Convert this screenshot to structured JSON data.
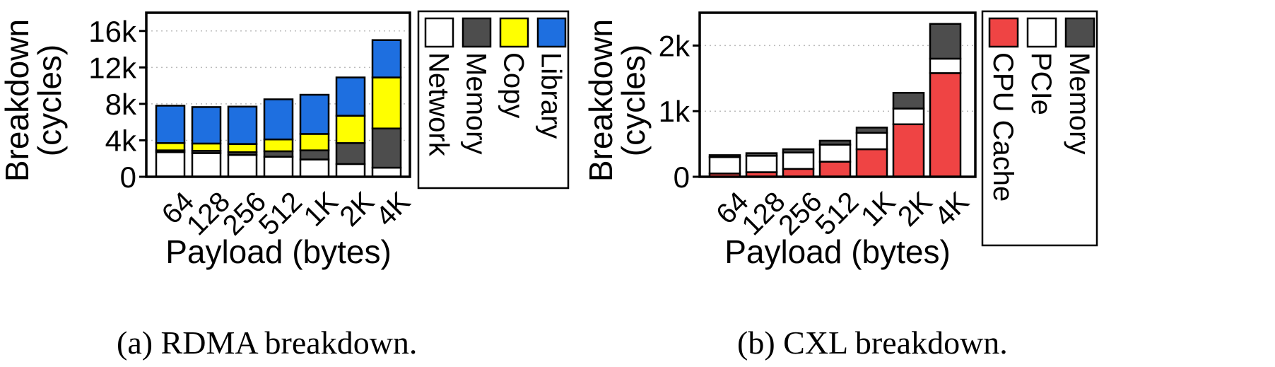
{
  "figures": [
    {
      "caption": "(a) RDMA breakdown."
    },
    {
      "caption": "(b) CXL breakdown."
    }
  ],
  "chart_data": [
    {
      "type": "bar",
      "stacked": true,
      "categories": [
        "64",
        "128",
        "256",
        "512",
        "1K",
        "2K",
        "4K"
      ],
      "xlabel": "Payload (bytes)",
      "ylabel": "Breakdown\n(cycles)",
      "ylim": [
        0,
        18000
      ],
      "yticks": [
        0,
        4000,
        8000,
        12000,
        16000
      ],
      "ytick_labels": [
        "0",
        "4k",
        "8k",
        "12k",
        "16k"
      ],
      "grid": true,
      "legend_position": "right",
      "series": [
        {
          "name": "Network",
          "color": "#ffffff",
          "values": [
            2700,
            2600,
            2400,
            2200,
            1900,
            1400,
            1000
          ]
        },
        {
          "name": "Memory",
          "color": "#4d4d4d",
          "values": [
            200,
            250,
            300,
            600,
            1000,
            2300,
            4300
          ]
        },
        {
          "name": "Copy",
          "color": "#ffff00",
          "values": [
            800,
            800,
            900,
            1300,
            1800,
            3000,
            5600
          ]
        },
        {
          "name": "Library",
          "color": "#1e6fe0",
          "values": [
            4100,
            4000,
            4100,
            4400,
            4300,
            4200,
            4100
          ]
        }
      ]
    },
    {
      "type": "bar",
      "stacked": true,
      "categories": [
        "64",
        "128",
        "256",
        "512",
        "1K",
        "2K",
        "4K"
      ],
      "xlabel": "Payload (bytes)",
      "ylabel": "Breakdown\n(cycles)",
      "ylim": [
        0,
        2500
      ],
      "yticks": [
        0,
        1000,
        2000
      ],
      "ytick_labels": [
        "0",
        "1k",
        "2k"
      ],
      "grid": true,
      "legend_position": "right",
      "series": [
        {
          "name": "CPU Cache",
          "color": "#ef4444",
          "values": [
            50,
            70,
            120,
            230,
            420,
            800,
            1580
          ]
        },
        {
          "name": "PCIe",
          "color": "#ffffff",
          "values": [
            250,
            250,
            250,
            260,
            250,
            240,
            220
          ]
        },
        {
          "name": "Memory",
          "color": "#4d4d4d",
          "values": [
            30,
            40,
            50,
            60,
            80,
            240,
            530
          ]
        }
      ]
    }
  ]
}
